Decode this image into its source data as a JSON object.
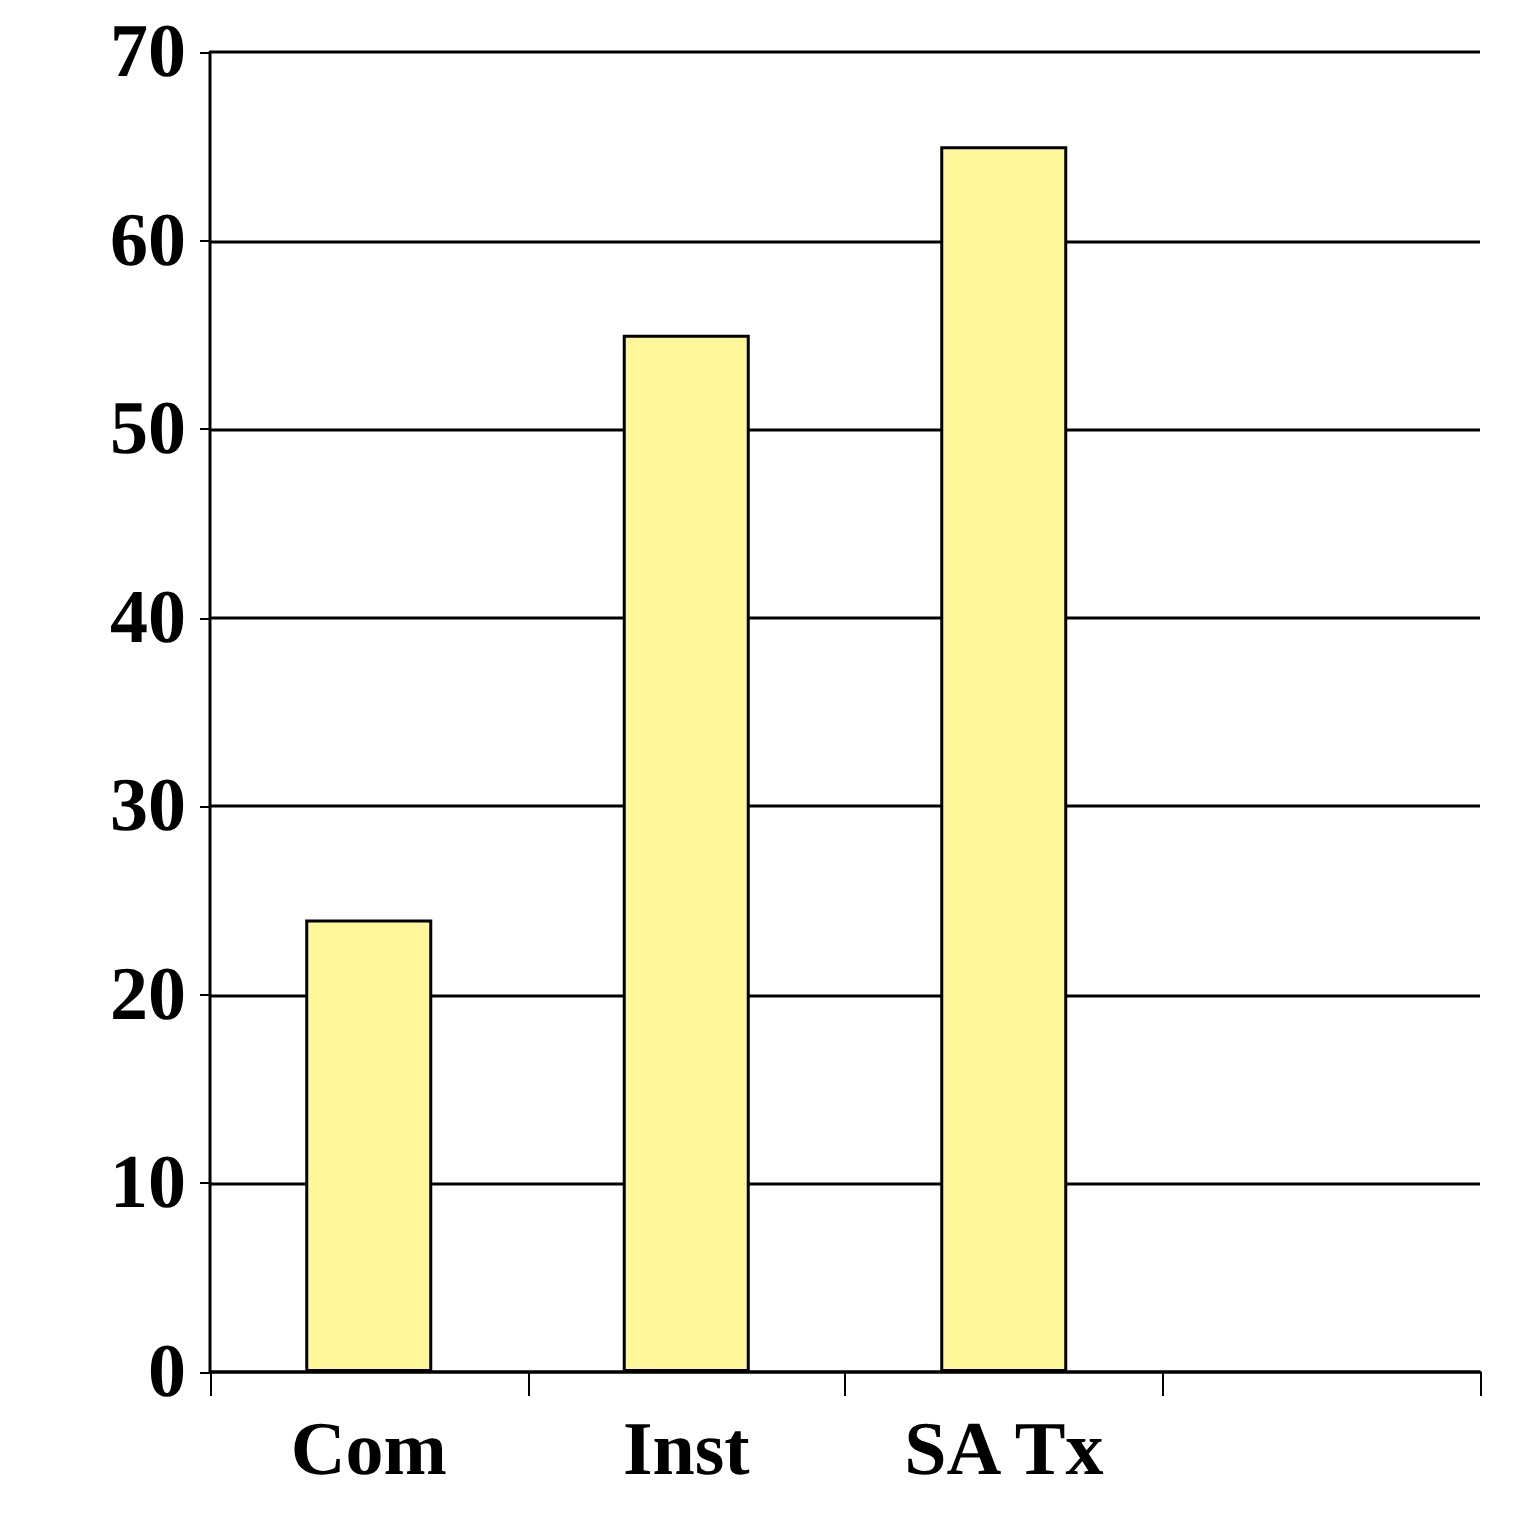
{
  "chart_data": {
    "type": "bar",
    "categories": [
      "Com",
      "Inst",
      "SA Tx",
      null
    ],
    "values": [
      24,
      55,
      65,
      null
    ],
    "color": "#fff799",
    "ylim": [
      0,
      70
    ],
    "yticks": [
      0,
      10,
      20,
      30,
      40,
      50,
      60,
      70
    ],
    "grid": "y"
  }
}
